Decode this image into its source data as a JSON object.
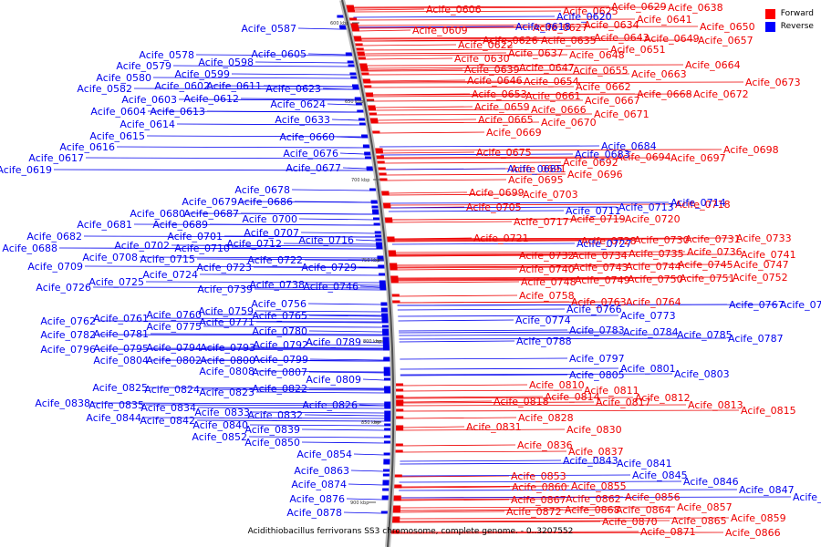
{
  "title": "Acidithiobacillus ferrivorans SS3 chromosome, complete genome. - 0..3207552",
  "legend": [
    {
      "label": "Forward",
      "color": "#ff0000"
    },
    {
      "label": "Reverse",
      "color": "#0000ff"
    }
  ],
  "ticks": [
    "600 kbp",
    "650 kbp",
    "700 kbp",
    "750 kbp",
    "800 kbp",
    "850 kbp",
    "900 kbp"
  ],
  "forward_labels": [
    "Acife_0606",
    "Acife_0609",
    "Acife_0622",
    "Acife_0625",
    "Acife_0626",
    "Acife_0627",
    "Acife_0629",
    "Acife_0630",
    "Acife_0634",
    "Acife_0635",
    "Acife_0637",
    "Acife_0638",
    "Acife_0639",
    "Acife_0641",
    "Acife_0643",
    "Acife_0646",
    "Acife_0647",
    "Acife_0648",
    "Acife_0649",
    "Acife_0650",
    "Acife_0651",
    "Acife_0653",
    "Acife_0654",
    "Acife_0655",
    "Acife_0657",
    "Acife_0659",
    "Acife_0661",
    "Acife_0662",
    "Acife_0663",
    "Acife_0664",
    "Acife_0665",
    "Acife_0666",
    "Acife_0667",
    "Acife_0668",
    "Acife_0669",
    "Acife_0670",
    "Acife_0671",
    "Acife_0672",
    "Acife_0673",
    "Acife_0675",
    "Acife_0691",
    "Acife_0692",
    "Acife_0694",
    "Acife_0695",
    "Acife_0696",
    "Acife_0697",
    "Acife_0698",
    "Acife_0699",
    "Acife_0703",
    "Acife_0705",
    "Acife_0717",
    "Acife_0718",
    "Acife_0719",
    "Acife_0720",
    "Acife_0721",
    "Acife_0728",
    "Acife_0730",
    "Acife_0731",
    "Acife_0732",
    "Acife_0733",
    "Acife_0734",
    "Acife_0735",
    "Acife_0736",
    "Acife_0740",
    "Acife_0741",
    "Acife_0743",
    "Acife_0744",
    "Acife_0745",
    "Acife_0747",
    "Acife_0748",
    "Acife_0749",
    "Acife_0750",
    "Acife_0751",
    "Acife_0752",
    "Acife_0758",
    "Acife_0763",
    "Acife_0764",
    "Acife_0810",
    "Acife_0811",
    "Acife_0812",
    "Acife_0813",
    "Acife_0814",
    "Acife_0815",
    "Acife_0817",
    "Acife_0818",
    "Acife_0828",
    "Acife_0830",
    "Acife_0831",
    "Acife_0836",
    "Acife_0837",
    "Acife_0853",
    "Acife_0855",
    "Acife_0856",
    "Acife_0857",
    "Acife_0859",
    "Acife_0860",
    "Acife_0862",
    "Acife_0864",
    "Acife_0865",
    "Acife_0866",
    "Acife_0867",
    "Acife_0868",
    "Acife_0870",
    "Acife_0871",
    "Acife_0872"
  ],
  "reverse_labels": [
    "Acife_0578",
    "Acife_0579",
    "Acife_0580",
    "Acife_0582",
    "Acife_0587",
    "Acife_0598",
    "Acife_0599",
    "Acife_0602",
    "Acife_0603",
    "Acife_0604",
    "Acife_0605",
    "Acife_0611",
    "Acife_0612",
    "Acife_0613",
    "Acife_0614",
    "Acife_0615",
    "Acife_0616",
    "Acife_0617",
    "Acife_0618",
    "Acife_0619",
    "Acife_0620",
    "Acife_0623",
    "Acife_0624",
    "Acife_0633",
    "Acife_0660",
    "Acife_0676",
    "Acife_0677",
    "Acife_0678",
    "Acife_0679",
    "Acife_0680",
    "Acife_0681",
    "Acife_0682",
    "Acife_0683",
    "Acife_0684",
    "Acife_0685",
    "Acife_0686",
    "Acife_0687",
    "Acife_0688",
    "Acife_0689",
    "Acife_0700",
    "Acife_0701",
    "Acife_0702",
    "Acife_0707",
    "Acife_0708",
    "Acife_0709",
    "Acife_0710",
    "Acife_0711",
    "Acife_0712",
    "Acife_0713",
    "Acife_0714",
    "Acife_0715",
    "Acife_0716",
    "Acife_0722",
    "Acife_0723",
    "Acife_0724",
    "Acife_0725",
    "Acife_0726",
    "Acife_0727",
    "Acife_0729",
    "Acife_0738",
    "Acife_0739",
    "Acife_0746",
    "Acife_0756",
    "Acife_0759",
    "Acife_0760",
    "Acife_0761",
    "Acife_0762",
    "Acife_0765",
    "Acife_0766",
    "Acife_0767",
    "Acife_0768",
    "Acife_0771",
    "Acife_0773",
    "Acife_0774",
    "Acife_0775",
    "Acife_0780",
    "Acife_0781",
    "Acife_0782",
    "Acife_0783",
    "Acife_0784",
    "Acife_0785",
    "Acife_0787",
    "Acife_0788",
    "Acife_0789",
    "Acife_0792",
    "Acife_0793",
    "Acife_0794",
    "Acife_0795",
    "Acife_0796",
    "Acife_0797",
    "Acife_0799",
    "Acife_0800",
    "Acife_0801",
    "Acife_0802",
    "Acife_0803",
    "Acife_0804",
    "Acife_0805",
    "Acife_0807",
    "Acife_0808",
    "Acife_0809",
    "Acife_0822",
    "Acife_0823",
    "Acife_0824",
    "Acife_0825",
    "Acife_0826",
    "Acife_0832",
    "Acife_0833",
    "Acife_0834",
    "Acife_0835",
    "Acife_0838",
    "Acife_0839",
    "Acife_0840",
    "Acife_0841",
    "Acife_0842",
    "Acife_0843",
    "Acife_0844",
    "Acife_0845",
    "Acife_0846",
    "Acife_0847",
    "Acife_0848",
    "Acife_0850",
    "Acife_0852",
    "Acife_0854",
    "Acife_0863",
    "Acife_0874",
    "Acife_0876",
    "Acife_0878"
  ]
}
